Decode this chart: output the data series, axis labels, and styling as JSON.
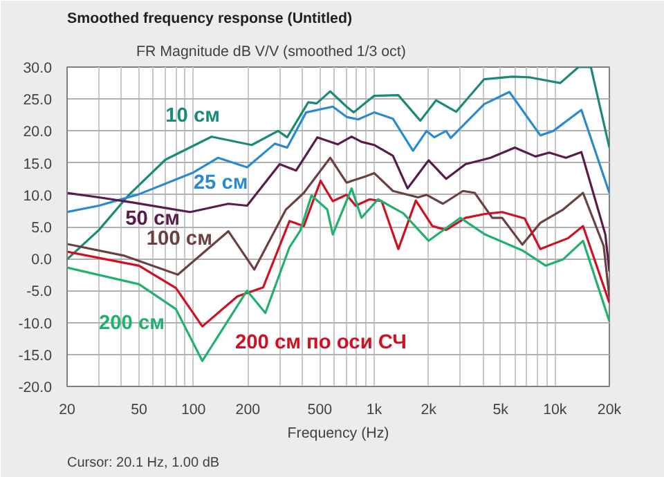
{
  "chart_data": {
    "type": "line",
    "title": "FR Magnitude dB V/V (smoothed 1/3 oct)",
    "subtitle": "Smoothed frequency response (Untitled)",
    "xlabel": "Frequency (Hz)",
    "log": "x",
    "grid": true,
    "marker": "none",
    "line_style": "solid",
    "xlim": [
      20,
      20000
    ],
    "ylim": [
      -20,
      30
    ],
    "xticks": [
      20,
      {
        "value": 30,
        "label": null
      },
      {
        "value": 40,
        "label": null
      },
      50,
      {
        "value": 60,
        "label": null
      },
      {
        "value": 70,
        "label": null
      },
      {
        "value": 80,
        "label": null
      },
      {
        "value": 90,
        "label": null
      },
      100,
      200,
      {
        "value": 300,
        "label": null
      },
      {
        "value": 400,
        "label": null
      },
      500,
      {
        "value": 600,
        "label": null
      },
      {
        "value": 700,
        "label": null
      },
      {
        "value": 800,
        "label": null
      },
      {
        "value": 900,
        "label": null
      },
      {
        "value": 1000,
        "label": "1k"
      },
      {
        "value": 2000,
        "label": "2k"
      },
      {
        "value": 3000,
        "label": null
      },
      {
        "value": 4000,
        "label": null
      },
      {
        "value": 5000,
        "label": "5k"
      },
      {
        "value": 6000,
        "label": null
      },
      {
        "value": 7000,
        "label": null
      },
      {
        "value": 8000,
        "label": null
      },
      {
        "value": 9000,
        "label": null
      },
      {
        "value": 10000,
        "label": "10k"
      },
      {
        "value": 20000,
        "label": "20k"
      }
    ],
    "yticks": [
      {
        "value": -20,
        "label": "-20.0"
      },
      {
        "value": -15,
        "label": "-15.0"
      },
      {
        "value": -10,
        "label": "-10.0"
      },
      {
        "value": -5,
        "label": "-5.0"
      },
      {
        "value": 0,
        "label": "0.0"
      },
      {
        "value": 5,
        "label": "5.0"
      },
      {
        "value": 10,
        "label": "10.0"
      },
      {
        "value": 15,
        "label": "15.0"
      },
      {
        "value": 20,
        "label": "20.0"
      },
      {
        "value": 25,
        "label": "25.0"
      },
      {
        "value": 30,
        "label": "30.0"
      }
    ],
    "annotations": [
      "Cursor: 20.1 Hz, 1.00 dB"
    ],
    "series": [
      {
        "name": "10 см",
        "color": "#1a8a78",
        "x": [
          20,
          30,
          44,
          70,
          126,
          210,
          294,
          330,
          432,
          480,
          571,
          703,
          770,
          1000,
          1360,
          1800,
          2200,
          2840,
          4060,
          5800,
          7200,
          10700,
          13500,
          15800,
          20000
        ],
        "values": [
          -0.1,
          4.5,
          10,
          15.5,
          19.1,
          17.8,
          20,
          19,
          24.5,
          24.3,
          26.2,
          23.8,
          22.9,
          25.5,
          25.6,
          21.6,
          24.8,
          23,
          28.1,
          28.5,
          28.4,
          27.5,
          30,
          30,
          17.4
        ]
      },
      {
        "name": "25 см",
        "color": "#2a8ad0",
        "x": [
          20,
          30,
          50,
          100,
          137,
          198,
          282,
          330,
          420,
          590,
          703,
          815,
          1000,
          1270,
          1640,
          1950,
          2150,
          2500,
          2650,
          4060,
          5600,
          8300,
          9800,
          14000,
          20000
        ],
        "values": [
          7.3,
          8.3,
          10.1,
          13.5,
          15.8,
          14.3,
          18,
          17.4,
          22.9,
          23.8,
          22.2,
          21.8,
          22.9,
          21.9,
          16.9,
          20,
          19,
          20,
          18.9,
          24.2,
          26.1,
          19.3,
          20,
          23.3,
          10.3
        ]
      },
      {
        "name": "50 см",
        "color": "#5a1a4a",
        "x": [
          20,
          30,
          46,
          96,
          156,
          198,
          300,
          370,
          485,
          628,
          750,
          850,
          1000,
          1270,
          1530,
          2000,
          2500,
          3200,
          4400,
          6000,
          7800,
          9300,
          11500,
          14000,
          19000,
          20000
        ],
        "values": [
          10.3,
          9.6,
          8.8,
          7.3,
          8.6,
          8.3,
          14.8,
          13.8,
          19,
          17.9,
          19.1,
          18.3,
          17.8,
          16.1,
          11,
          15.4,
          12.5,
          14.8,
          15.8,
          17.4,
          16,
          16.6,
          15.8,
          16.7,
          3.8,
          -2
        ]
      },
      {
        "name": "100 см",
        "color": "#6a4040",
        "x": [
          20,
          41,
          82,
          156,
          217,
          325,
          408,
          571,
          703,
          900,
          1000,
          1270,
          1750,
          1950,
          2400,
          3100,
          3600,
          4500,
          5100,
          6600,
          8300,
          11100,
          14300,
          18600,
          20000
        ],
        "values": [
          2.3,
          0.5,
          -2.5,
          4.3,
          -1.7,
          7.7,
          10.3,
          15.8,
          11.9,
          12.9,
          13.4,
          10.6,
          9.6,
          10,
          8.6,
          10.6,
          10.3,
          6.4,
          6.4,
          2.2,
          5.6,
          7.7,
          10.3,
          2,
          -6
        ]
      },
      {
        "name": "200 см по оси СЧ",
        "color": "#d01020",
        "x": [
          20,
          50,
          80,
          112,
          175,
          243,
          340,
          408,
          505,
          590,
          703,
          790,
          945,
          1100,
          1360,
          1700,
          2100,
          2500,
          3200,
          4100,
          5100,
          6800,
          8300,
          11800,
          14300,
          20000
        ],
        "values": [
          1.1,
          -1.1,
          -4.6,
          -10.6,
          -5.9,
          -4.5,
          5.9,
          5.1,
          12.2,
          9,
          10,
          8.3,
          9.3,
          9,
          1.5,
          9.1,
          5.1,
          4.5,
          6.4,
          7,
          7.3,
          6.3,
          1.5,
          3.2,
          5.1,
          -6.9
        ]
      },
      {
        "name": "200 см",
        "color": "#20b070",
        "x": [
          20,
          50,
          80,
          112,
          198,
          250,
          340,
          390,
          450,
          550,
          590,
          750,
          850,
          1050,
          1450,
          2000,
          3000,
          4100,
          6600,
          8900,
          11100,
          14300,
          20000
        ],
        "values": [
          -1.4,
          -4,
          -7.9,
          -16,
          -5,
          -8.5,
          1.8,
          4.4,
          9.9,
          7.7,
          3.8,
          11,
          6.4,
          9.3,
          7.1,
          2.8,
          6.4,
          3.8,
          1.3,
          -1.1,
          -0.1,
          2.8,
          -9.8
        ]
      }
    ]
  }
}
